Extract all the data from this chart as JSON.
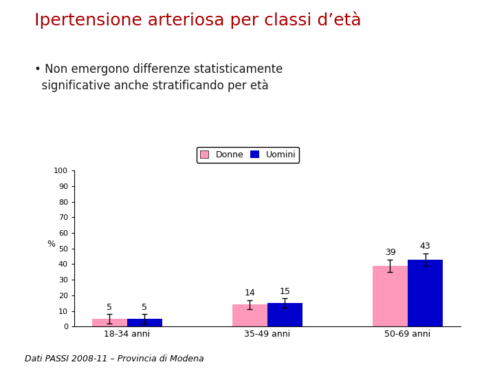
{
  "title": "Ipertensione arteriosa per classi d’età",
  "title_color": "#aa0000",
  "bullet_text_line1": "Non emergono differenze statisticamente",
  "bullet_text_line2": "significative anche stratificando per età",
  "bullet_text_color": "#1a1a1a",
  "categories": [
    "18-34 anni",
    "35-49 anni",
    "50-69 anni"
  ],
  "donne_values": [
    5,
    14,
    39
  ],
  "uomini_values": [
    5,
    15,
    43
  ],
  "donne_errors": [
    3,
    3,
    4
  ],
  "uomini_errors": [
    3,
    3,
    4
  ],
  "donne_color": "#ff99bb",
  "uomini_color": "#0000cc",
  "legend_donne": "Donne",
  "legend_uomini": "Uomini",
  "ylabel": "%",
  "ylim": [
    0,
    100
  ],
  "yticks": [
    0,
    10,
    20,
    30,
    40,
    50,
    60,
    70,
    80,
    90,
    100
  ],
  "footnote": "Dati PASSI 2008-11 – Provincia di Modena",
  "background_color": "#ffffff",
  "bar_width": 0.25,
  "title_fontsize": 18,
  "bullet_fontsize": 12,
  "footnote_fontsize": 9
}
